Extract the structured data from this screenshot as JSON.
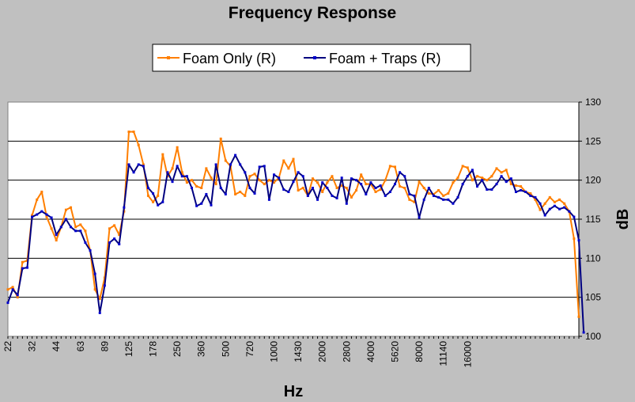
{
  "chart_data": {
    "type": "line",
    "title": "Frequency Response",
    "xlabel": "Hz",
    "ylabel": "dB",
    "ylim": [
      100,
      130
    ],
    "y_ticks": [
      100,
      105,
      110,
      115,
      120,
      125,
      130
    ],
    "x_tick_labels": [
      "22",
      "32",
      "44",
      "63",
      "89",
      "125",
      "178",
      "250",
      "360",
      "500",
      "720",
      "1000",
      "1430",
      "2000",
      "2800",
      "4000",
      "5620",
      "8000",
      "11140",
      "16000"
    ],
    "x_tick_every": 5,
    "grid": "horizontal",
    "legend_position": "top",
    "series": [
      {
        "name": "Foam Only (R)",
        "color": "#ff7f00",
        "marker_color": "#ff7f00",
        "values": [
          106.0,
          106.3,
          105.0,
          109.5,
          109.7,
          115.5,
          117.5,
          118.5,
          115.3,
          113.8,
          112.3,
          114.0,
          116.2,
          116.5,
          114.0,
          114.3,
          113.5,
          111.0,
          106.0,
          104.8,
          107.5,
          113.8,
          114.2,
          113.0,
          116.0,
          126.2,
          126.2,
          124.5,
          122.0,
          118.0,
          117.2,
          118.0,
          123.3,
          120.5,
          121.5,
          124.2,
          121.0,
          119.7,
          120.0,
          119.2,
          119.0,
          121.5,
          120.3,
          119.5,
          125.3,
          122.5,
          121.8,
          118.2,
          118.5,
          118.0,
          120.5,
          120.8,
          120.0,
          119.5,
          120.0,
          119.7,
          120.3,
          122.5,
          121.5,
          122.7,
          118.7,
          119.0,
          118.0,
          120.2,
          119.7,
          118.5,
          119.7,
          120.5,
          119.0,
          119.3,
          119.0,
          117.8,
          118.7,
          120.7,
          119.5,
          119.5,
          118.5,
          118.8,
          120.0,
          121.8,
          121.7,
          119.2,
          119.0,
          117.5,
          117.2,
          119.8,
          119.0,
          118.3,
          118.2,
          118.7,
          118.0,
          118.3,
          119.7,
          120.3,
          121.8,
          121.6,
          120.0,
          120.5,
          120.3,
          120.0,
          120.5,
          121.5,
          121.0,
          121.3,
          119.5,
          119.3,
          119.2,
          118.5,
          118.3,
          117.5,
          116.2,
          117.0,
          117.8,
          117.2,
          117.5,
          117.0,
          116.0,
          112.5,
          102.5
        ]
      },
      {
        "name": "Foam + Traps (R)",
        "color": "#000080",
        "marker_color": "#0000cc",
        "values": [
          104.3,
          106.0,
          105.3,
          108.7,
          108.8,
          115.3,
          115.6,
          116.0,
          115.6,
          115.2,
          113.0,
          114.0,
          115.0,
          114.0,
          113.5,
          113.5,
          112.0,
          111.0,
          108.0,
          103.0,
          106.5,
          112.0,
          112.5,
          111.8,
          116.5,
          122.0,
          121.0,
          122.0,
          121.8,
          119.0,
          118.3,
          116.8,
          117.2,
          121.0,
          119.8,
          121.8,
          120.5,
          120.5,
          119.0,
          116.7,
          117.0,
          118.2,
          116.8,
          122.0,
          119.0,
          118.2,
          122.0,
          123.2,
          122.0,
          121.0,
          119.0,
          118.3,
          121.7,
          121.8,
          117.5,
          120.7,
          120.3,
          118.8,
          118.5,
          119.8,
          121.0,
          120.5,
          118.0,
          119.0,
          117.5,
          119.7,
          119.0,
          118.0,
          117.7,
          120.3,
          117.0,
          120.2,
          120.0,
          119.5,
          118.2,
          119.7,
          119.0,
          119.3,
          118.0,
          118.5,
          119.5,
          121.0,
          120.5,
          118.2,
          118.0,
          115.2,
          117.5,
          119.0,
          118.0,
          117.8,
          117.5,
          117.5,
          117.0,
          117.8,
          119.5,
          120.5,
          121.3,
          119.2,
          120.0,
          118.8,
          118.8,
          119.5,
          120.5,
          119.8,
          120.2,
          118.5,
          118.7,
          118.5,
          118.0,
          117.8,
          117.0,
          115.5,
          116.3,
          116.7,
          116.3,
          116.5,
          116.0,
          115.3,
          112.3,
          100.5
        ]
      }
    ]
  }
}
